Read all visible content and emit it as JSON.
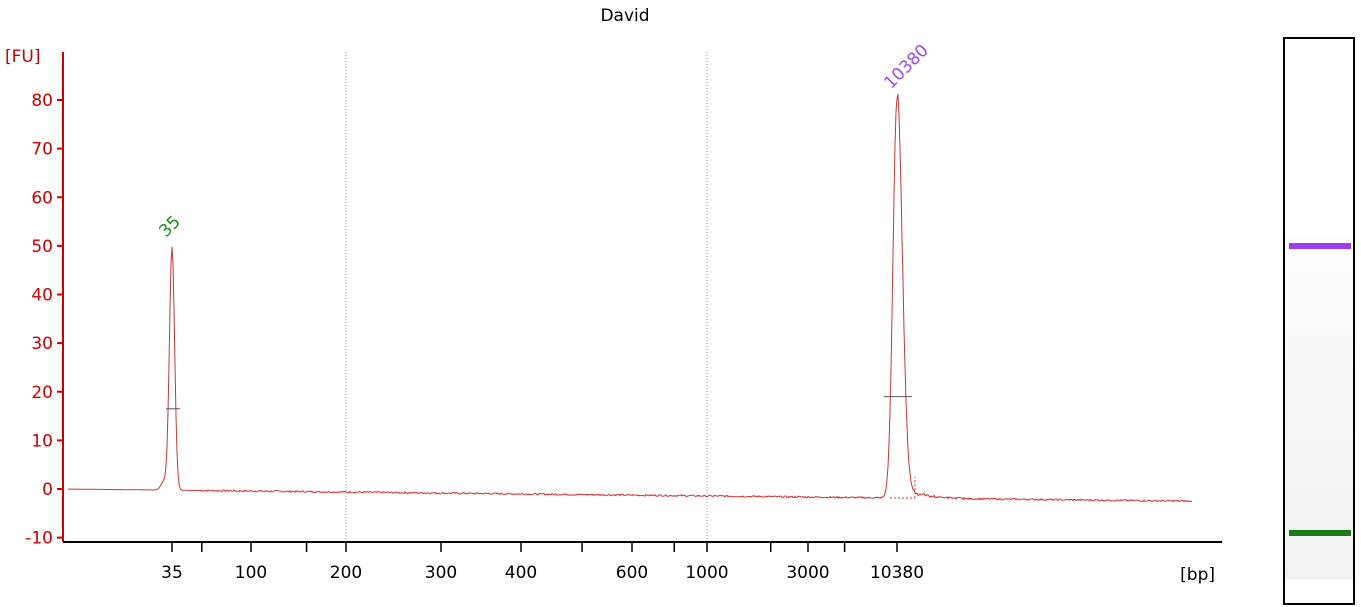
{
  "chart_data": {
    "type": "line",
    "title": "David",
    "ylabel": "[FU]",
    "xlabel": "[bp]",
    "x_scale": "categorical-log (sizing ladder)",
    "y_ticks": [
      -10,
      0,
      10,
      20,
      30,
      40,
      50,
      60,
      70,
      80
    ],
    "ylim": [
      -10,
      90
    ],
    "x_tick_labels": [
      "35",
      "100",
      "200",
      "300",
      "400",
      "600",
      "1000",
      "3000",
      "10380"
    ],
    "x_unlabeled_ticks": 6,
    "gridlines_bp": [
      "200",
      "1000"
    ],
    "peaks": [
      {
        "label": "35",
        "size_bp": 35,
        "height_fu": 50,
        "half_height_fu": 16.5,
        "color": "#1a8a1a"
      },
      {
        "label": "10380",
        "size_bp": 10380,
        "height_fu": 80.5,
        "half_height_fu": 19,
        "color": "#9a4de8"
      }
    ],
    "baseline_fu": {
      "start": 0,
      "end": -2.5
    },
    "line_color": "#cc3333",
    "axis_color": "#cc0000"
  },
  "gel": {
    "bands": [
      {
        "label": "10380",
        "color": "#9b3df0"
      },
      {
        "label": "35",
        "color": "#1a7a1a"
      }
    ]
  }
}
